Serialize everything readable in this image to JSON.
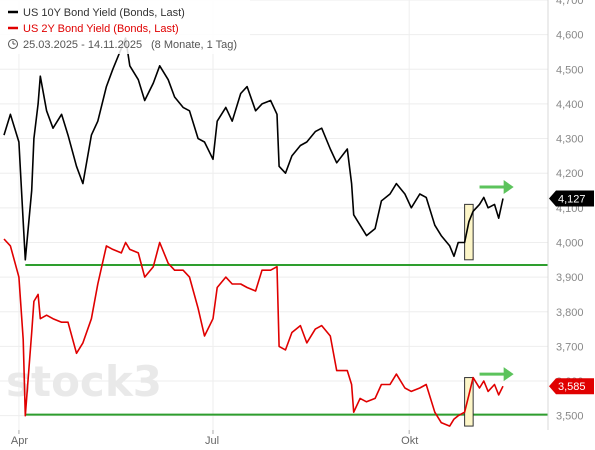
{
  "legend": {
    "series1": "US 10Y Bond Yield (Bonds, Last)",
    "series2": "US 2Y Bond Yield (Bonds, Last)",
    "period": "25.03.2025 - 14.11.2025",
    "period_detail": "(8 Monate, 1 Tag)"
  },
  "watermark": "stock3",
  "chart_data": {
    "type": "line",
    "title": "",
    "xlabel": "",
    "ylabel": "",
    "x_range": [
      "2025-03-25",
      "2025-11-14"
    ],
    "x_ticks": [
      {
        "date": "2025-04-01",
        "label": "Apr"
      },
      {
        "date": "2025-07-01",
        "label": "Jul"
      },
      {
        "date": "2025-10-01",
        "label": "Okt"
      }
    ],
    "ylim": [
      3.45,
      4.7
    ],
    "y_ticks": [
      "3,500",
      "3,600",
      "3,700",
      "3,800",
      "3,900",
      "4,000",
      "4,100",
      "4,200",
      "4,300",
      "4,400",
      "4,500",
      "4,600",
      "4,700"
    ],
    "y_tick_values": [
      3.5,
      3.6,
      3.7,
      3.8,
      3.9,
      4.0,
      4.1,
      4.2,
      4.3,
      4.4,
      4.5,
      4.6,
      4.7
    ],
    "series": [
      {
        "name": "US 10Y Bond Yield (Bonds, Last)",
        "color": "#000000",
        "last_label": "4,127",
        "last_value": 4.127,
        "points": [
          [
            "2025-03-25",
            4.31
          ],
          [
            "2025-03-28",
            4.37
          ],
          [
            "2025-04-01",
            4.29
          ],
          [
            "2025-04-03",
            4.06
          ],
          [
            "2025-04-04",
            3.95
          ],
          [
            "2025-04-07",
            4.15
          ],
          [
            "2025-04-08",
            4.3
          ],
          [
            "2025-04-10",
            4.4
          ],
          [
            "2025-04-11",
            4.48
          ],
          [
            "2025-04-14",
            4.38
          ],
          [
            "2025-04-17",
            4.33
          ],
          [
            "2025-04-21",
            4.37
          ],
          [
            "2025-04-24",
            4.31
          ],
          [
            "2025-04-28",
            4.22
          ],
          [
            "2025-05-01",
            4.17
          ],
          [
            "2025-05-05",
            4.31
          ],
          [
            "2025-05-08",
            4.35
          ],
          [
            "2025-05-12",
            4.45
          ],
          [
            "2025-05-15",
            4.5
          ],
          [
            "2025-05-19",
            4.56
          ],
          [
            "2025-05-21",
            4.59
          ],
          [
            "2025-05-23",
            4.51
          ],
          [
            "2025-05-27",
            4.47
          ],
          [
            "2025-05-30",
            4.41
          ],
          [
            "2025-06-03",
            4.46
          ],
          [
            "2025-06-06",
            4.51
          ],
          [
            "2025-06-10",
            4.47
          ],
          [
            "2025-06-13",
            4.42
          ],
          [
            "2025-06-17",
            4.39
          ],
          [
            "2025-06-20",
            4.38
          ],
          [
            "2025-06-24",
            4.3
          ],
          [
            "2025-06-27",
            4.29
          ],
          [
            "2025-07-01",
            4.24
          ],
          [
            "2025-07-03",
            4.35
          ],
          [
            "2025-07-07",
            4.39
          ],
          [
            "2025-07-10",
            4.35
          ],
          [
            "2025-07-14",
            4.43
          ],
          [
            "2025-07-17",
            4.45
          ],
          [
            "2025-07-21",
            4.38
          ],
          [
            "2025-07-24",
            4.4
          ],
          [
            "2025-07-28",
            4.41
          ],
          [
            "2025-07-31",
            4.37
          ],
          [
            "2025-08-01",
            4.22
          ],
          [
            "2025-08-04",
            4.2
          ],
          [
            "2025-08-07",
            4.25
          ],
          [
            "2025-08-11",
            4.28
          ],
          [
            "2025-08-14",
            4.29
          ],
          [
            "2025-08-18",
            4.32
          ],
          [
            "2025-08-21",
            4.33
          ],
          [
            "2025-08-25",
            4.27
          ],
          [
            "2025-08-28",
            4.23
          ],
          [
            "2025-09-02",
            4.27
          ],
          [
            "2025-09-04",
            4.17
          ],
          [
            "2025-09-05",
            4.08
          ],
          [
            "2025-09-08",
            4.05
          ],
          [
            "2025-09-11",
            4.02
          ],
          [
            "2025-09-15",
            4.04
          ],
          [
            "2025-09-18",
            4.12
          ],
          [
            "2025-09-22",
            4.14
          ],
          [
            "2025-09-25",
            4.17
          ],
          [
            "2025-09-29",
            4.14
          ],
          [
            "2025-10-02",
            4.1
          ],
          [
            "2025-10-06",
            4.14
          ],
          [
            "2025-10-09",
            4.13
          ],
          [
            "2025-10-13",
            4.05
          ],
          [
            "2025-10-16",
            4.02
          ],
          [
            "2025-10-20",
            3.99
          ],
          [
            "2025-10-22",
            3.96
          ],
          [
            "2025-10-24",
            4.0
          ],
          [
            "2025-10-27",
            4.0
          ],
          [
            "2025-10-29",
            4.06
          ],
          [
            "2025-10-31",
            4.09
          ],
          [
            "2025-11-03",
            4.11
          ],
          [
            "2025-11-05",
            4.13
          ],
          [
            "2025-11-07",
            4.1
          ],
          [
            "2025-11-10",
            4.11
          ],
          [
            "2025-11-12",
            4.07
          ],
          [
            "2025-11-14",
            4.127
          ]
        ]
      },
      {
        "name": "US 2Y Bond Yield (Bonds, Last)",
        "color": "#e00000",
        "last_label": "3,585",
        "last_value": 3.585,
        "points": [
          [
            "2025-03-25",
            4.01
          ],
          [
            "2025-03-28",
            3.99
          ],
          [
            "2025-04-01",
            3.9
          ],
          [
            "2025-04-03",
            3.72
          ],
          [
            "2025-04-04",
            3.5
          ],
          [
            "2025-04-07",
            3.74
          ],
          [
            "2025-04-08",
            3.83
          ],
          [
            "2025-04-10",
            3.85
          ],
          [
            "2025-04-11",
            3.78
          ],
          [
            "2025-04-14",
            3.79
          ],
          [
            "2025-04-17",
            3.78
          ],
          [
            "2025-04-21",
            3.77
          ],
          [
            "2025-04-24",
            3.77
          ],
          [
            "2025-04-28",
            3.68
          ],
          [
            "2025-05-01",
            3.71
          ],
          [
            "2025-05-05",
            3.78
          ],
          [
            "2025-05-08",
            3.88
          ],
          [
            "2025-05-12",
            3.99
          ],
          [
            "2025-05-15",
            3.98
          ],
          [
            "2025-05-19",
            3.97
          ],
          [
            "2025-05-21",
            4.0
          ],
          [
            "2025-05-23",
            3.98
          ],
          [
            "2025-05-27",
            3.97
          ],
          [
            "2025-05-30",
            3.9
          ],
          [
            "2025-06-03",
            3.93
          ],
          [
            "2025-06-06",
            4.0
          ],
          [
            "2025-06-10",
            3.94
          ],
          [
            "2025-06-13",
            3.92
          ],
          [
            "2025-06-17",
            3.92
          ],
          [
            "2025-06-20",
            3.9
          ],
          [
            "2025-06-24",
            3.81
          ],
          [
            "2025-06-27",
            3.73
          ],
          [
            "2025-07-01",
            3.78
          ],
          [
            "2025-07-03",
            3.87
          ],
          [
            "2025-07-07",
            3.9
          ],
          [
            "2025-07-10",
            3.88
          ],
          [
            "2025-07-14",
            3.88
          ],
          [
            "2025-07-17",
            3.87
          ],
          [
            "2025-07-21",
            3.86
          ],
          [
            "2025-07-24",
            3.92
          ],
          [
            "2025-07-28",
            3.92
          ],
          [
            "2025-07-31",
            3.93
          ],
          [
            "2025-08-01",
            3.7
          ],
          [
            "2025-08-04",
            3.69
          ],
          [
            "2025-08-07",
            3.74
          ],
          [
            "2025-08-11",
            3.76
          ],
          [
            "2025-08-14",
            3.71
          ],
          [
            "2025-08-18",
            3.75
          ],
          [
            "2025-08-21",
            3.76
          ],
          [
            "2025-08-25",
            3.73
          ],
          [
            "2025-08-28",
            3.63
          ],
          [
            "2025-09-02",
            3.63
          ],
          [
            "2025-09-04",
            3.59
          ],
          [
            "2025-09-05",
            3.51
          ],
          [
            "2025-09-08",
            3.55
          ],
          [
            "2025-09-11",
            3.54
          ],
          [
            "2025-09-15",
            3.55
          ],
          [
            "2025-09-18",
            3.59
          ],
          [
            "2025-09-22",
            3.59
          ],
          [
            "2025-09-25",
            3.62
          ],
          [
            "2025-09-29",
            3.58
          ],
          [
            "2025-10-02",
            3.57
          ],
          [
            "2025-10-06",
            3.58
          ],
          [
            "2025-10-09",
            3.59
          ],
          [
            "2025-10-13",
            3.51
          ],
          [
            "2025-10-16",
            3.48
          ],
          [
            "2025-10-20",
            3.47
          ],
          [
            "2025-10-22",
            3.49
          ],
          [
            "2025-10-24",
            3.5
          ],
          [
            "2025-10-27",
            3.51
          ],
          [
            "2025-10-29",
            3.56
          ],
          [
            "2025-10-31",
            3.61
          ],
          [
            "2025-11-03",
            3.58
          ],
          [
            "2025-11-05",
            3.6
          ],
          [
            "2025-11-07",
            3.57
          ],
          [
            "2025-11-10",
            3.59
          ],
          [
            "2025-11-12",
            3.56
          ],
          [
            "2025-11-14",
            3.585
          ]
        ]
      }
    ],
    "horizontal_lines": [
      {
        "value": 3.935,
        "color": "#2e9e2e",
        "from": "2025-04-04"
      },
      {
        "value": 3.503,
        "color": "#2e9e2e",
        "from": "2025-04-04"
      }
    ],
    "highlight_boxes": [
      {
        "from": "2025-10-27",
        "to": "2025-10-31",
        "y_range": [
          3.95,
          4.11
        ],
        "fill": "#fdf6c8",
        "stroke": "#333333"
      },
      {
        "from": "2025-10-27",
        "to": "2025-10-31",
        "y_range": [
          3.47,
          3.61
        ],
        "fill": "#fdf6c8",
        "stroke": "#333333"
      }
    ],
    "arrows": [
      {
        "from": "2025-11-03",
        "to": "2025-11-19",
        "y": 4.16,
        "color": "#5cc35c"
      },
      {
        "from": "2025-11-03",
        "to": "2025-11-19",
        "y": 3.62,
        "color": "#5cc35c"
      }
    ],
    "grid": true,
    "legend_position": "top-left"
  }
}
